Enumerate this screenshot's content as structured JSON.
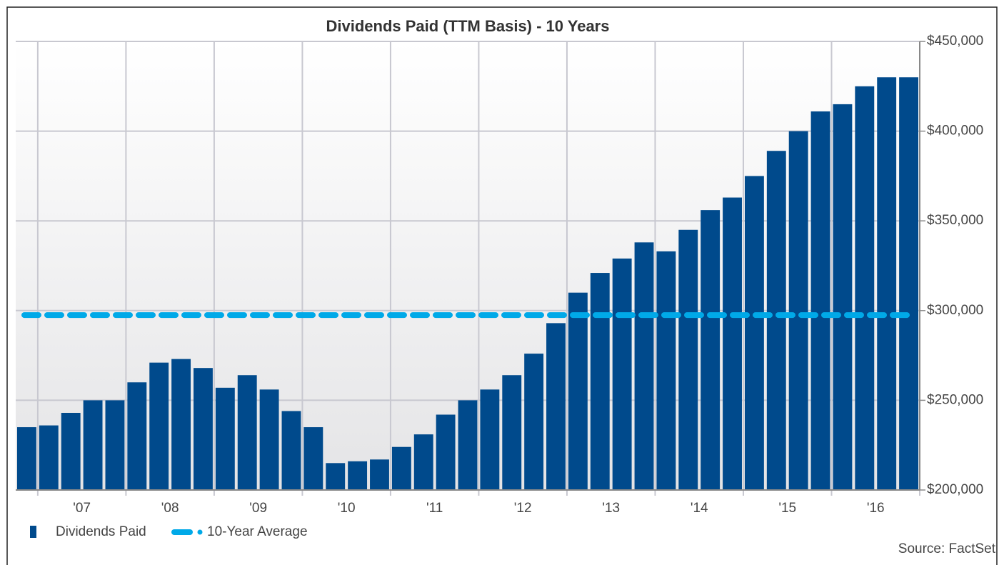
{
  "chart_data": {
    "type": "bar",
    "title": "Dividends Paid (TTM Basis) - 10 Years",
    "x_labels": [
      "'07",
      "'08",
      "'09",
      "'10",
      "'11",
      "'12",
      "'13",
      "'14",
      "'15",
      "'16"
    ],
    "series": [
      {
        "name": "Dividends Paid",
        "color": "#004a8c",
        "values": [
          235000,
          236000,
          243000,
          250000,
          250000,
          260000,
          271000,
          273000,
          268000,
          257000,
          264000,
          256000,
          244000,
          235000,
          215000,
          216000,
          217000,
          224000,
          231000,
          242000,
          250000,
          256000,
          264000,
          276000,
          293000,
          310000,
          321000,
          329000,
          338000,
          333000,
          345000,
          356000,
          363000,
          375000,
          389000,
          400000,
          411000,
          415000,
          425000,
          430000,
          430000
        ]
      },
      {
        "name": "10-Year Average",
        "color": "#00a9e8",
        "value": 297500
      }
    ],
    "ylim": [
      200000,
      450000
    ],
    "yticks": [
      {
        "value": 200000,
        "label": "$200,000"
      },
      {
        "value": 250000,
        "label": "$250,000"
      },
      {
        "value": 300000,
        "label": "$300,000"
      },
      {
        "value": 350000,
        "label": "$350,000"
      },
      {
        "value": 400000,
        "label": "$400,000"
      },
      {
        "value": 450000,
        "label": "$450,000"
      }
    ],
    "grid": true,
    "source": "Source: FactSet"
  }
}
